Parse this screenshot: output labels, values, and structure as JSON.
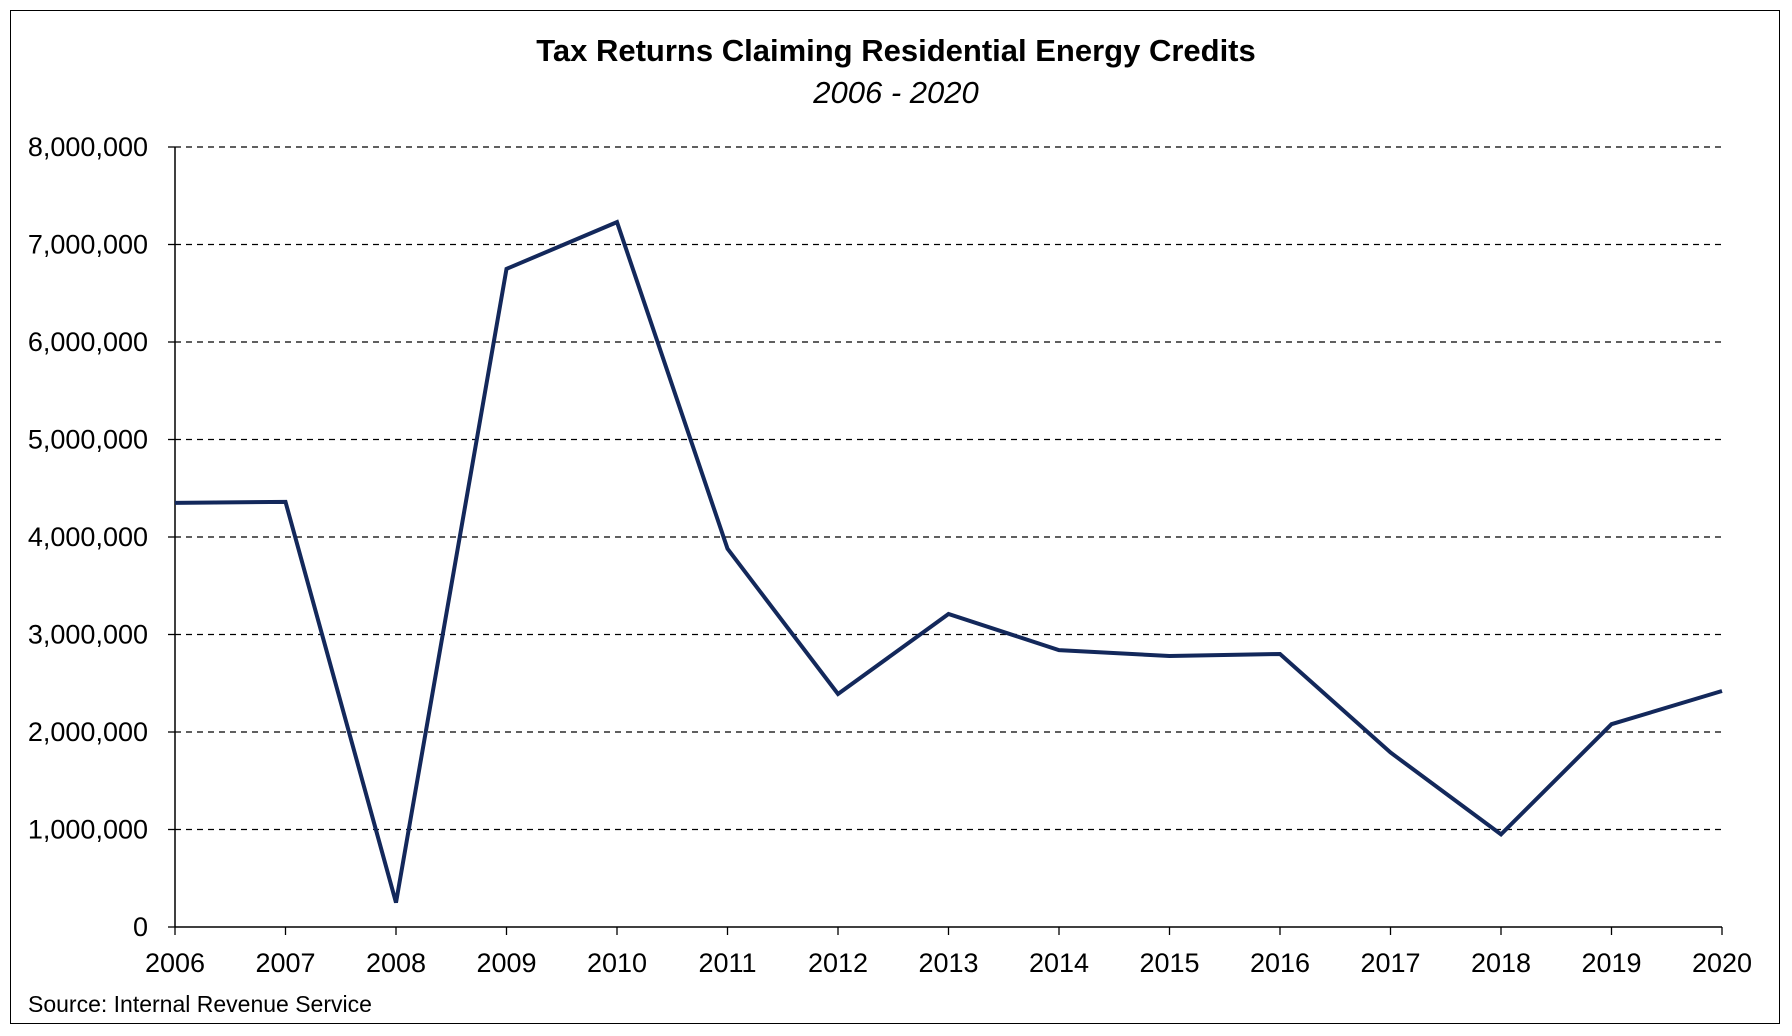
{
  "chart_data": {
    "type": "line",
    "title": "Tax Returns Claiming Residential Energy Credits",
    "subtitle": "2006 - 2020",
    "xlabel": "",
    "ylabel": "",
    "x": [
      "2006",
      "2007",
      "2008",
      "2009",
      "2010",
      "2011",
      "2012",
      "2013",
      "2014",
      "2015",
      "2016",
      "2017",
      "2018",
      "2019",
      "2020"
    ],
    "series": [
      {
        "values": [
          4350000,
          4360000,
          250000,
          6750000,
          7230000,
          3880000,
          2390000,
          3210000,
          2840000,
          2780000,
          2800000,
          1790000,
          950000,
          2080000,
          2420000
        ]
      }
    ],
    "ylim": [
      0,
      8000000
    ],
    "yticks": [
      "0",
      "1,000,000",
      "2,000,000",
      "3,000,000",
      "4,000,000",
      "5,000,000",
      "6,000,000",
      "7,000,000",
      "8,000,000"
    ],
    "grid": "horizontal dashed",
    "legend": "none",
    "source": "Source: Internal Revenue Service",
    "colors": {
      "line": "#13285b",
      "grid": "#000000",
      "axis": "#000000"
    }
  }
}
